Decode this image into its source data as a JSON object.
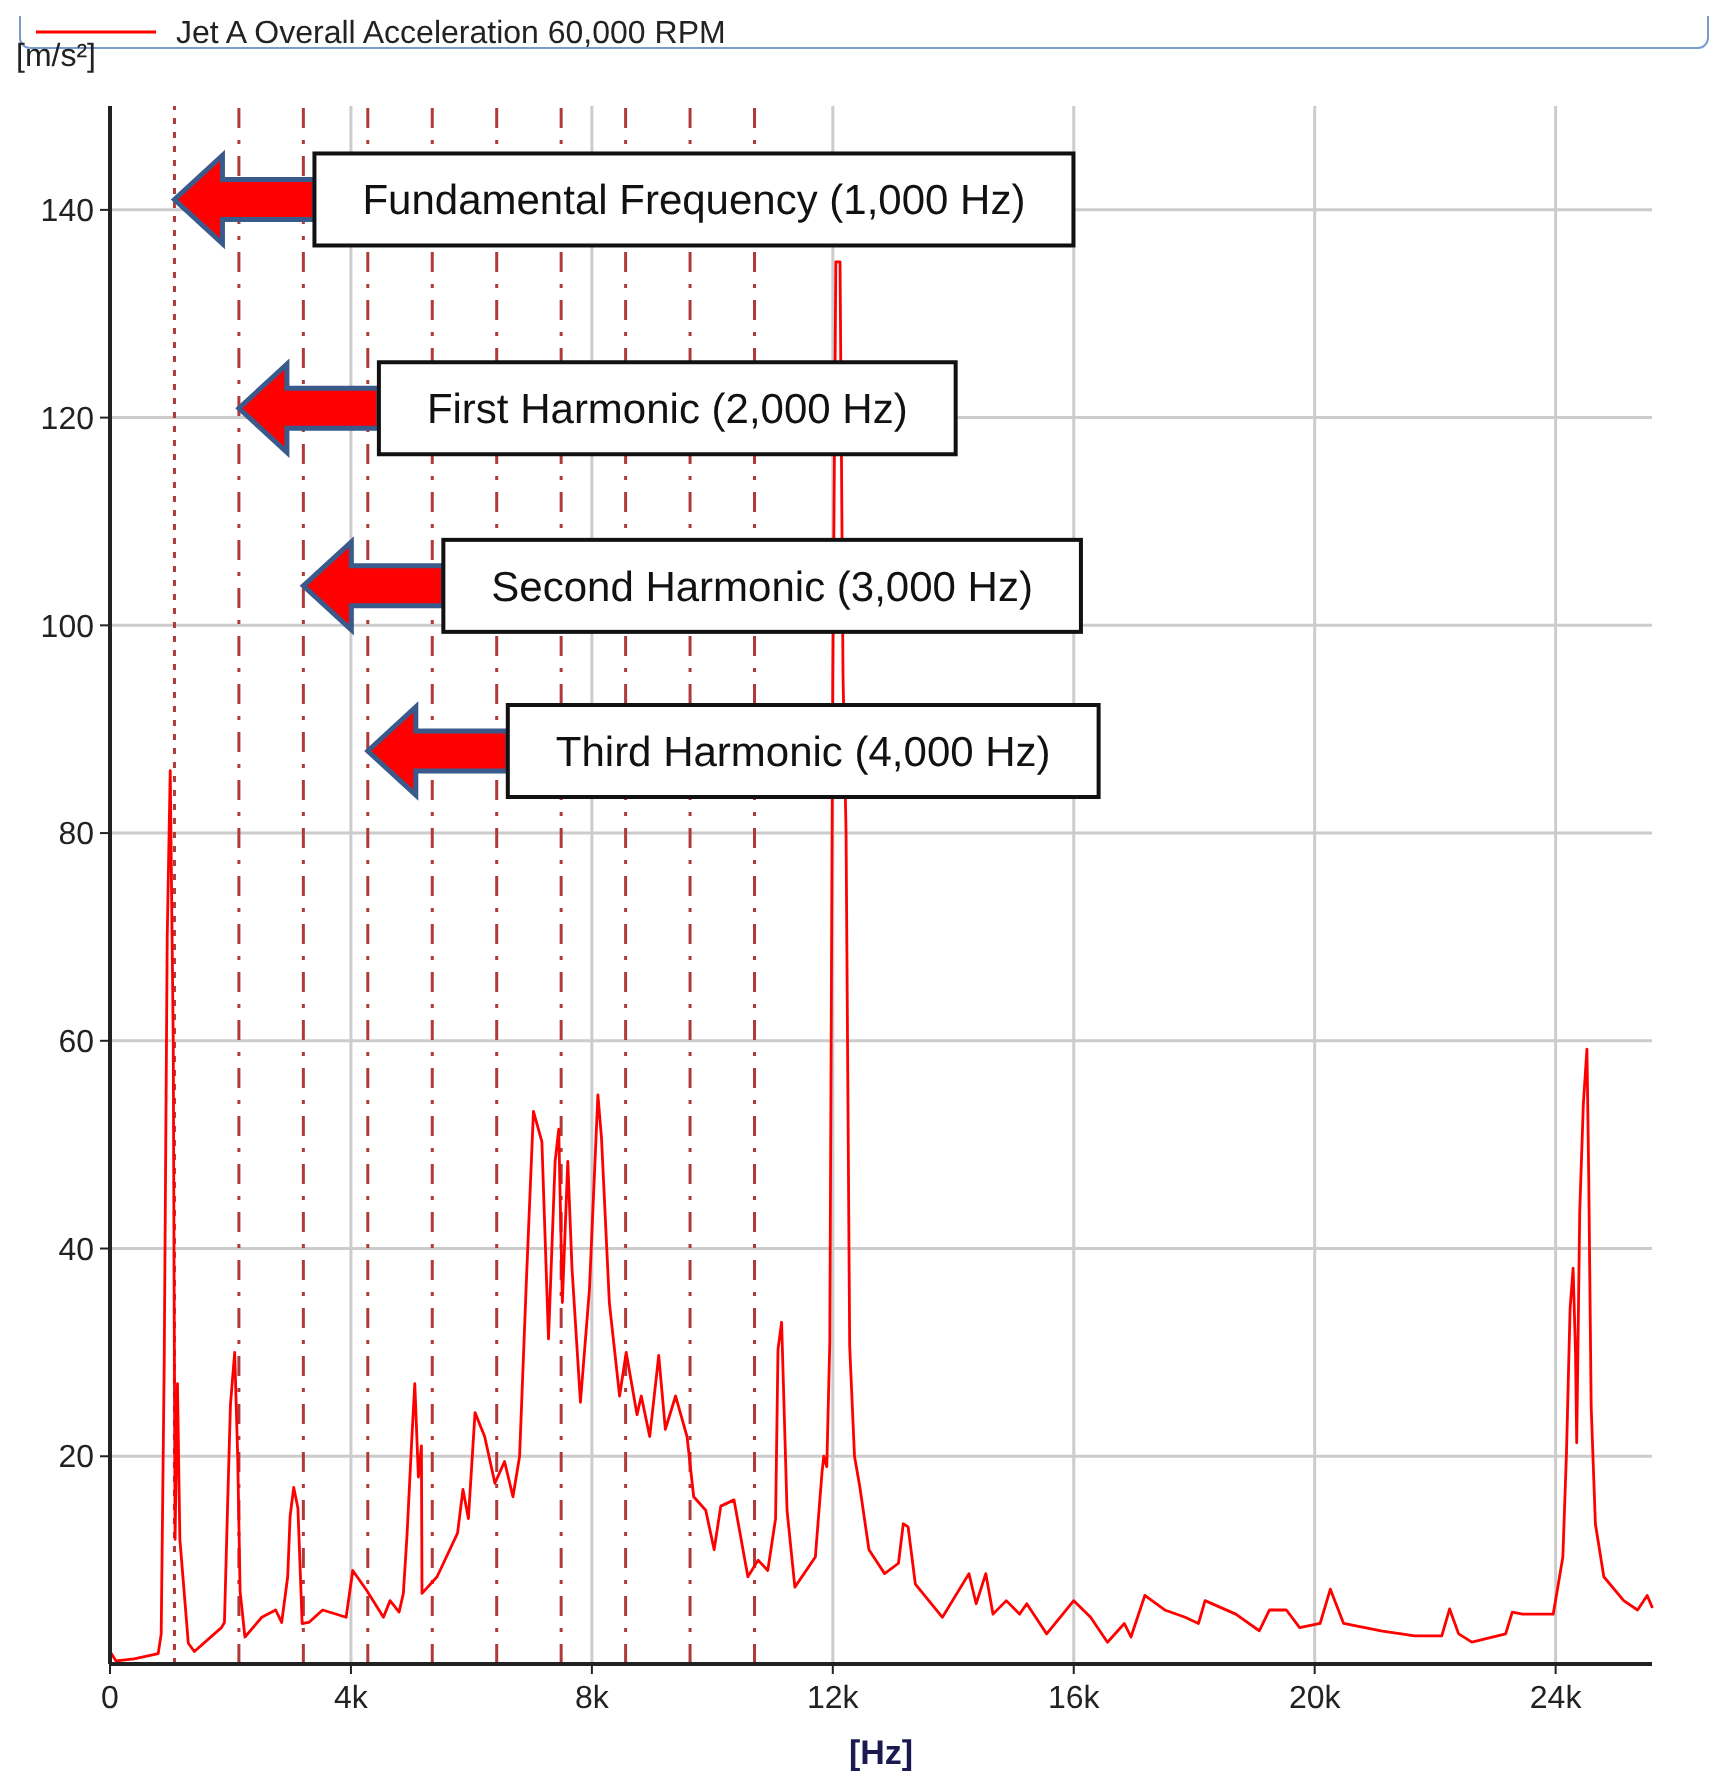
{
  "chart_data": {
    "type": "line",
    "xlabel": "[Hz]",
    "ylabel": "[m/s²]",
    "xlim": [
      0,
      25600
    ],
    "ylim": [
      0,
      150
    ],
    "xticks": [
      0,
      {
        "value": 4000,
        "label": "4k"
      },
      {
        "value": 8000,
        "label": "8k"
      },
      {
        "value": 12000,
        "label": "12k"
      },
      {
        "value": 16000,
        "label": "16k"
      },
      {
        "value": 20000,
        "label": "20k"
      },
      {
        "value": 24000,
        "label": "24k"
      }
    ],
    "yticks": [
      20,
      40,
      60,
      80,
      100,
      120,
      140
    ],
    "grid": true,
    "legend": "top left",
    "marker": "none",
    "line_style": "solid",
    "series": [
      {
        "name": "Jet A Overall Acceleration 60,000 RPM",
        "color": "#ff0000",
        "x": [
          0,
          100,
          400,
          800,
          850,
          900,
          950,
          1000,
          1050,
          1080,
          1120,
          1160,
          1300,
          1400,
          1850,
          1900,
          1950,
          2000,
          2070,
          2120,
          2160,
          2240,
          2520,
          2750,
          2850,
          2950,
          2990,
          3050,
          3120,
          3190,
          3300,
          3530,
          3920,
          4030,
          4260,
          4540,
          4650,
          4800,
          4870,
          4930,
          5010,
          5060,
          5120,
          5170,
          5180,
          5430,
          5770,
          5860,
          5950,
          6060,
          6220,
          6390,
          6550,
          6690,
          6800,
          6910,
          7030,
          7170,
          7280,
          7390,
          7450,
          7510,
          7600,
          7670,
          7810,
          7960,
          8100,
          8160,
          8290,
          8460,
          8570,
          8750,
          8820,
          8960,
          9110,
          9220,
          9390,
          9580,
          9690,
          9890,
          10030,
          10140,
          10360,
          10590,
          10760,
          10920,
          11050,
          11090,
          11150,
          11240,
          11370,
          11710,
          11820,
          11850,
          11900,
          11950,
          12000,
          12050,
          12120,
          12170,
          12220,
          12280,
          12360,
          12450,
          12600,
          12860,
          13090,
          13170,
          13250,
          13370,
          13820,
          14260,
          14380,
          14540,
          14660,
          14880,
          15100,
          15220,
          15550,
          16000,
          16280,
          16560,
          16840,
          16950,
          17180,
          17510,
          17850,
          18070,
          18180,
          18690,
          19080,
          19250,
          19530,
          19750,
          20090,
          20260,
          20480,
          21100,
          21660,
          22110,
          22240,
          22390,
          22610,
          23170,
          23280,
          23450,
          23960,
          24120,
          24180,
          24240,
          24290,
          24330,
          24350,
          24400,
          24460,
          24520,
          24550,
          24590,
          24660,
          24800,
          25130,
          25360,
          25520,
          25600
        ],
        "values": [
          1.2,
          0.3,
          0.5,
          1,
          2.9,
          29,
          70,
          86,
          60,
          12,
          27,
          12,
          2,
          1.2,
          3.5,
          4,
          14.8,
          25,
          30,
          20,
          7,
          2.6,
          4.5,
          5.2,
          4,
          8.4,
          14.2,
          17,
          15,
          3.9,
          4,
          5.2,
          4.5,
          9,
          7.1,
          4.5,
          6.1,
          5,
          6.8,
          12.3,
          21.6,
          27,
          18,
          21,
          6.8,
          8.4,
          12.6,
          16.8,
          14,
          24.2,
          21.9,
          17.4,
          19.5,
          16.1,
          20,
          36.5,
          53.2,
          50.3,
          31.3,
          48.4,
          51.5,
          34.8,
          48.4,
          38.1,
          25.2,
          36.1,
          54.8,
          50.6,
          34.8,
          25.8,
          30,
          24,
          25.8,
          21.9,
          29.7,
          22.6,
          25.8,
          21.9,
          16.1,
          14.8,
          11,
          15.2,
          15.8,
          8.4,
          10,
          9,
          14,
          30.3,
          32.9,
          14.8,
          7.4,
          10.3,
          18.4,
          20,
          19,
          31,
          95,
          135,
          135,
          95,
          80,
          30.6,
          20,
          17,
          11,
          8.7,
          9.7,
          13.5,
          13.2,
          7.7,
          4.5,
          8.7,
          5.8,
          8.7,
          4.8,
          6.1,
          4.8,
          5.8,
          2.9,
          6.1,
          4.5,
          2.1,
          3.9,
          2.6,
          6.6,
          5.2,
          4.5,
          3.9,
          6.1,
          4.8,
          3.2,
          5.2,
          5.2,
          3.5,
          3.9,
          7.2,
          3.9,
          3.2,
          2.7,
          2.7,
          5.3,
          2.9,
          2.1,
          2.9,
          5,
          4.8,
          4.8,
          10.3,
          20.3,
          34.2,
          38.1,
          30,
          21.3,
          43.5,
          53.9,
          59.2,
          46.8,
          24.8,
          13.5,
          8.4,
          6.1,
          5.2,
          6.6,
          5.5
        ]
      }
    ],
    "ref_lines": [
      {
        "axis": "x",
        "value": 1070,
        "color": "#b03a3a",
        "line_style": "dotted"
      },
      {
        "axis": "x",
        "value": 2140,
        "color": "#b03a3a",
        "line_style": "dashed"
      },
      {
        "axis": "x",
        "value": 3210,
        "color": "#b03a3a",
        "line_style": "dashed"
      },
      {
        "axis": "x",
        "value": 4280,
        "color": "#b03a3a",
        "line_style": "dashed"
      },
      {
        "axis": "x",
        "value": 5350,
        "color": "#b03a3a",
        "line_style": "dashed"
      },
      {
        "axis": "x",
        "value": 6420,
        "color": "#b03a3a",
        "line_style": "dashed"
      },
      {
        "axis": "x",
        "value": 7490,
        "color": "#b03a3a",
        "line_style": "dashed"
      },
      {
        "axis": "x",
        "value": 8560,
        "color": "#b03a3a",
        "line_style": "dashed"
      },
      {
        "axis": "x",
        "value": 9630,
        "color": "#b03a3a",
        "line_style": "dashed"
      },
      {
        "axis": "x",
        "value": 10700,
        "color": "#b03a3a",
        "line_style": "dashed"
      }
    ],
    "annotations": [
      "Fundamental Frequency (1,000 Hz)",
      "First Harmonic (2,000 Hz)",
      "Second Harmonic (3,000 Hz)",
      "Third Harmonic (4,000 Hz)"
    ]
  }
}
